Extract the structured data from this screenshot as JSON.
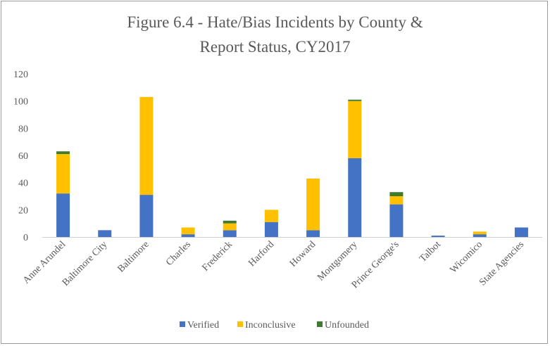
{
  "chart_data": {
    "type": "bar",
    "stacked": true,
    "title_line1": "Figure 6.4 - Hate/Bias Incidents by County &",
    "title_line2": "Report Status, CY2017",
    "categories": [
      "Anne Arundel",
      "Baltimore City",
      "Baltimore",
      "Charles",
      "Frederick",
      "Harford",
      "Howard",
      "Montgomery",
      "Prince George's",
      "Talbot",
      "Wicomico",
      "State Agencies"
    ],
    "series": [
      {
        "name": "Verified",
        "color": "#4472c4",
        "values": [
          32,
          5,
          31,
          2,
          5,
          11,
          5,
          58,
          24,
          1,
          2,
          7
        ]
      },
      {
        "name": "Inconclusive",
        "color": "#ffc000",
        "values": [
          29,
          0,
          72,
          5,
          5,
          9,
          38,
          42,
          6,
          0,
          2,
          0
        ]
      },
      {
        "name": "Unfounded",
        "color": "#3f7a2e",
        "values": [
          2,
          0,
          0,
          0,
          2,
          0,
          0,
          1,
          3,
          0,
          0,
          0
        ]
      }
    ],
    "ylim": [
      0,
      120
    ],
    "yticks": [
      0,
      20,
      40,
      60,
      80,
      100,
      120
    ],
    "grid": false,
    "legend_position": "bottom"
  }
}
